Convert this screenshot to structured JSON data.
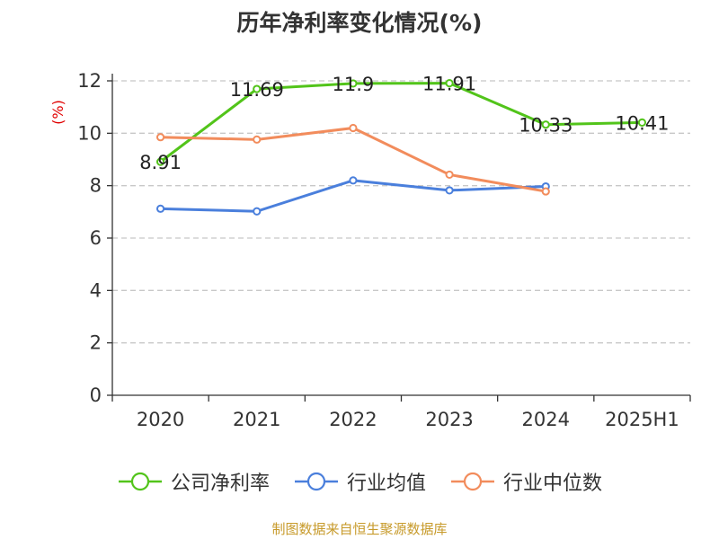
{
  "chart_data": {
    "type": "line",
    "title": "历年净利率变化情况(%)",
    "ylabel": "(%)",
    "xlabel": "",
    "categories": [
      "2020",
      "2021",
      "2022",
      "2023",
      "2024",
      "2025H1"
    ],
    "ylim": [
      0,
      12
    ],
    "yticks": [
      "0",
      "2",
      "4",
      "6",
      "8",
      "10",
      "12"
    ],
    "grid": true,
    "legend_position": "bottom",
    "series": [
      {
        "name": "公司净利率",
        "color": "#52c41a",
        "values": [
          8.91,
          11.69,
          11.9,
          11.91,
          10.33,
          10.41
        ],
        "labels": [
          "8.91",
          "11.69",
          "11.9",
          "11.91",
          "10.33",
          "10.41"
        ]
      },
      {
        "name": "行业均值",
        "color": "#4a7fdc",
        "values": [
          7.12,
          7.02,
          8.2,
          7.82,
          7.97,
          null
        ]
      },
      {
        "name": "行业中位数",
        "color": "#f28c5c",
        "values": [
          9.85,
          9.76,
          10.2,
          8.42,
          7.78,
          null
        ]
      }
    ]
  },
  "footer": "制图数据来自恒生聚源数据库",
  "colors": {
    "ylabel": "#e00000",
    "grid": "#c8c8c8",
    "axis": "#333333"
  }
}
